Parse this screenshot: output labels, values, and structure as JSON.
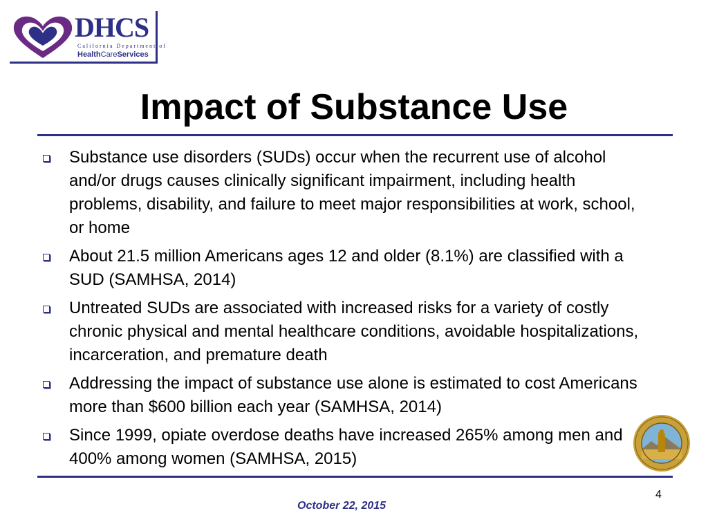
{
  "logo": {
    "letters": "DHCS",
    "subtitle": "California Department of",
    "name_bold_1": "Health",
    "name_light": "Care",
    "name_bold_2": "Services",
    "colors": {
      "navy": "#2e2f86",
      "purple": "#6b2a84",
      "heart_outline": "#2e2f86"
    }
  },
  "slide": {
    "title": "Impact of Substance Use",
    "bullets": [
      "Substance use disorders (SUDs) occur when the recurrent use of alcohol and/or drugs causes clinically significant impairment, including health problems, disability, and failure to meet major responsibilities at work, school, or home",
      "About 21.5 million Americans ages 12 and older (8.1%) are classified with a SUD (SAMHSA, 2014)",
      "Untreated SUDs are associated with increased risks for a variety of costly chronic physical and mental healthcare conditions, avoidable hospitalizations, incarceration, and premature death",
      "Addressing the impact of substance use alone is estimated to cost Americans more than $600 billion each year (SAMHSA, 2014)",
      "Since 1999, opiate overdose deaths have increased 265% among men and 400% among women (SAMHSA, 2015)"
    ]
  },
  "seal": {
    "icon": "california-state-seal-icon"
  },
  "footer": {
    "date": "October 22, 2015",
    "page_number": "4"
  },
  "colors": {
    "accent": "#2e2f86",
    "text": "#000000",
    "background": "#ffffff"
  }
}
